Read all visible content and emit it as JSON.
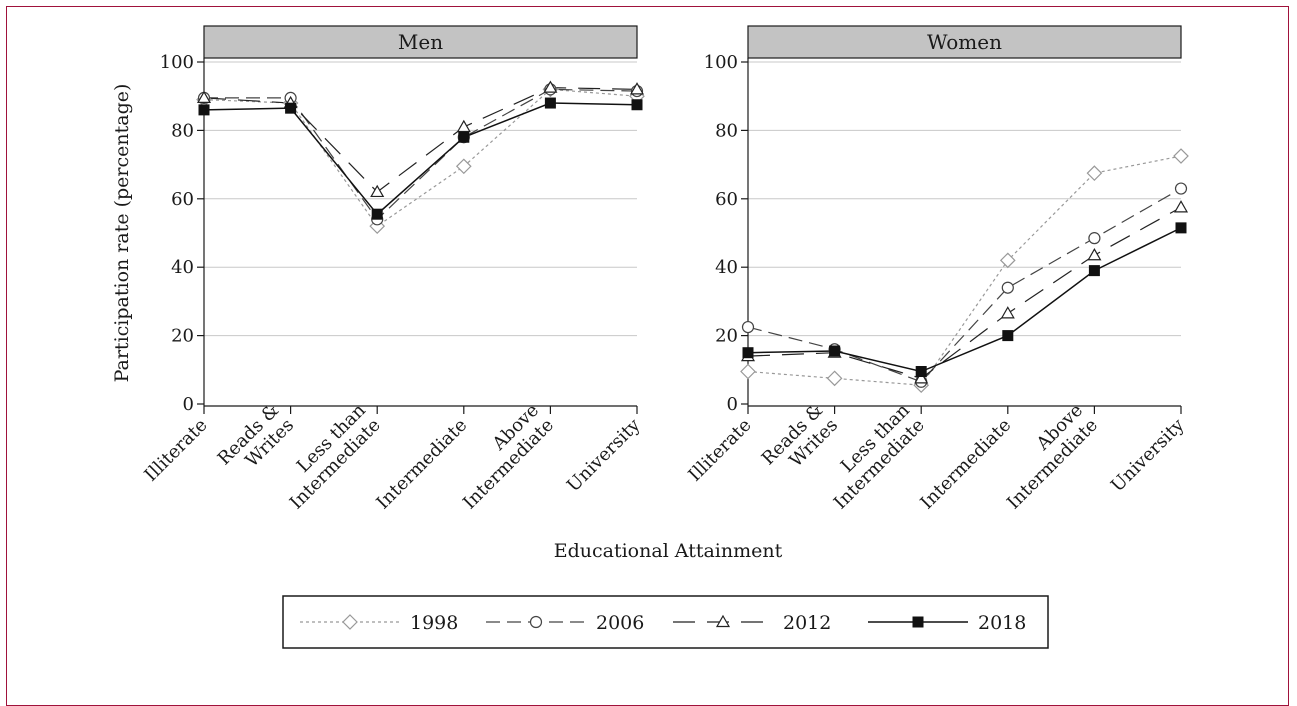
{
  "chart_data": {
    "type": "line",
    "xlabel": "Educational Attainment",
    "ylabel": "Participation rate (percentage)",
    "ylim": [
      0,
      100
    ],
    "yticks": [
      0,
      20,
      40,
      60,
      80,
      100
    ],
    "grid": true,
    "legend_position": "bottom",
    "categories": [
      [
        "Illiterate"
      ],
      [
        "Reads &",
        "Writes"
      ],
      [
        "Less than",
        "Intermediate"
      ],
      [
        "Intermediate"
      ],
      [
        "Above",
        "Intermediate"
      ],
      [
        "University"
      ]
    ],
    "series_styles": [
      {
        "name": "1998",
        "color": "#999999",
        "dash": "3,3",
        "marker": "diamond",
        "width": 1.2
      },
      {
        "name": "2006",
        "color": "#444444",
        "dash": "14,7",
        "marker": "circle",
        "width": 1.2
      },
      {
        "name": "2012",
        "color": "#222222",
        "dash": "22,12",
        "marker": "triangle",
        "width": 1.2
      },
      {
        "name": "2018",
        "color": "#111111",
        "dash": "",
        "marker": "square",
        "width": 1.5
      }
    ],
    "panels": [
      {
        "title": "Men",
        "series": [
          {
            "name": "1998",
            "values": [
              89,
              88,
              52,
              69.5,
              92,
              90
            ]
          },
          {
            "name": "2006",
            "values": [
              89.5,
              89.5,
              54,
              78,
              92,
              91.5
            ]
          },
          {
            "name": "2012",
            "values": [
              89.5,
              88,
              62,
              81,
              92.5,
              92
            ]
          },
          {
            "name": "2018",
            "values": [
              86,
              86.5,
              55.5,
              78,
              88,
              87.5
            ]
          }
        ]
      },
      {
        "title": "Women",
        "series": [
          {
            "name": "1998",
            "values": [
              9.5,
              7.5,
              5.5,
              42,
              67.5,
              72.5
            ]
          },
          {
            "name": "2006",
            "values": [
              22.5,
              16,
              6.5,
              34,
              48.5,
              63
            ]
          },
          {
            "name": "2012",
            "values": [
              14,
              15,
              7.5,
              26.5,
              43.5,
              57.5
            ]
          },
          {
            "name": "2018",
            "values": [
              15,
              15.5,
              9.5,
              20,
              39,
              51.5
            ]
          }
        ]
      }
    ]
  }
}
